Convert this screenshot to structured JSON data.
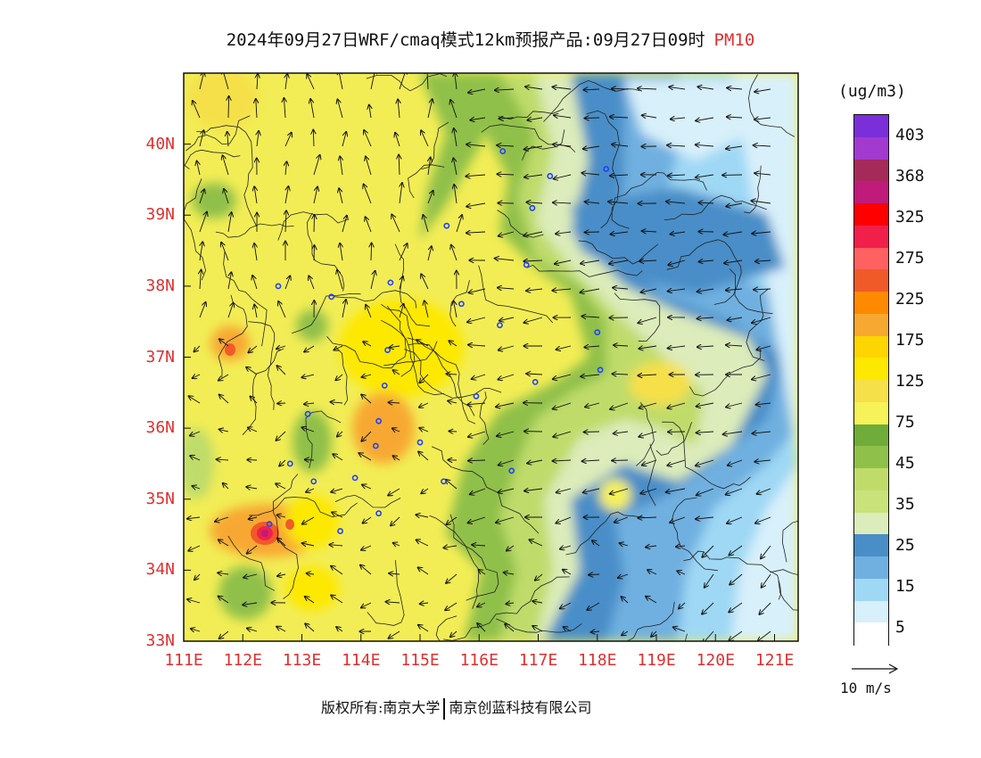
{
  "title": {
    "main": "2024年09月27日WRF/cmaq模式12km预报产品:09月27日09时",
    "variable": "PM10"
  },
  "axes": {
    "lat_labels": [
      "40N",
      "39N",
      "38N",
      "37N",
      "36N",
      "35N",
      "34N",
      "33N"
    ],
    "lon_labels": [
      "111E",
      "112E",
      "113E",
      "114E",
      "115E",
      "116E",
      "117E",
      "118E",
      "119E",
      "120E",
      "121E"
    ],
    "lat_range": [
      33,
      41
    ],
    "lon_range": [
      111,
      121.4
    ]
  },
  "colorbar": {
    "unit": "(ug/m3)",
    "labels": [
      "403",
      "368",
      "325",
      "275",
      "225",
      "175",
      "125",
      "75",
      "45",
      "35",
      "25",
      "15",
      "5"
    ],
    "colors_top_to_bottom": [
      "#7b2fd8",
      "#a23ad0",
      "#a52a5a",
      "#c01a7a",
      "#ff0000",
      "#f0204a",
      "#ff6060",
      "#f05a28",
      "#ff8a00",
      "#f7a830",
      "#fdd500",
      "#fde800",
      "#f5e04a",
      "#f5f25a",
      "#6fac3a",
      "#8fc04a",
      "#bfdc6a",
      "#c9e27a",
      "#dcecba",
      "#4a8ec8",
      "#70b0e0",
      "#9fd8f4",
      "#d8f0fa",
      "#ffffff"
    ]
  },
  "vector_reference": {
    "label": "10 m/s"
  },
  "credit": {
    "left": "版权所有:南京大学",
    "right": "南京创蓝科技有限公司"
  },
  "cities": [
    [
      112.6,
      38.0
    ],
    [
      113.5,
      37.85
    ],
    [
      114.5,
      38.05
    ],
    [
      115.7,
      37.75
    ],
    [
      116.35,
      37.45
    ],
    [
      114.45,
      37.1
    ],
    [
      114.4,
      36.6
    ],
    [
      114.3,
      36.1
    ],
    [
      114.25,
      35.75
    ],
    [
      115.0,
      35.8
    ],
    [
      115.95,
      36.45
    ],
    [
      116.95,
      36.65
    ],
    [
      118.05,
      36.82
    ],
    [
      118.0,
      37.35
    ],
    [
      113.1,
      36.2
    ],
    [
      112.8,
      35.5
    ],
    [
      113.2,
      35.25
    ],
    [
      113.9,
      35.3
    ],
    [
      115.4,
      35.25
    ],
    [
      116.55,
      35.4
    ],
    [
      114.3,
      34.8
    ],
    [
      113.65,
      34.55
    ],
    [
      112.45,
      34.65
    ],
    [
      116.9,
      39.1
    ],
    [
      116.4,
      39.9
    ],
    [
      117.2,
      39.55
    ],
    [
      118.15,
      39.65
    ],
    [
      115.45,
      38.85
    ],
    [
      116.8,
      38.3
    ]
  ]
}
